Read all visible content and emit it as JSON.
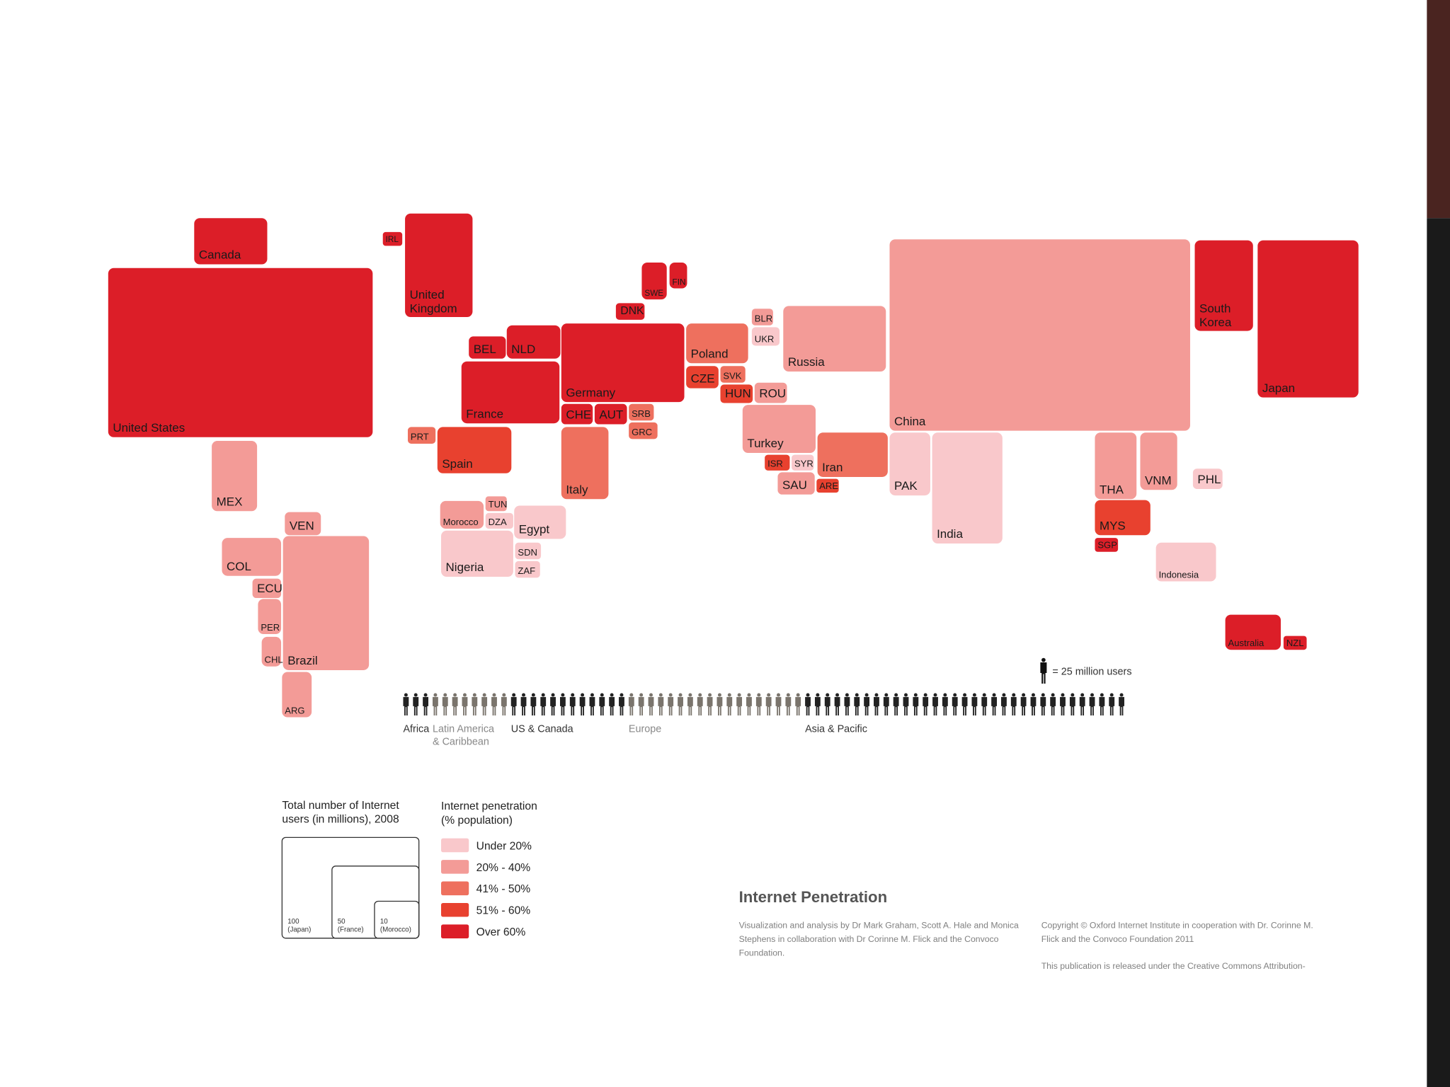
{
  "map": {
    "title": "Internet Penetration",
    "bands": [
      {
        "label": "Under 20%",
        "color": "#f9c8cb"
      },
      {
        "label": "20% - 40%",
        "color": "#f39b97"
      },
      {
        "label": "41% - 50%",
        "color": "#ee705e"
      },
      {
        "label": "51% - 60%",
        "color": "#e8412f"
      },
      {
        "label": "Over 60%",
        "color": "#dc1e28"
      }
    ],
    "countries": [
      {
        "label": "Canada",
        "band": 4
      },
      {
        "label": "United States",
        "band": 4
      },
      {
        "label": "IRL",
        "band": 4
      },
      {
        "label": "United Kingdom",
        "band": 4
      },
      {
        "label": "SWE",
        "band": 4
      },
      {
        "label": "FIN",
        "band": 4
      },
      {
        "label": "DNK",
        "band": 4
      },
      {
        "label": "BEL",
        "band": 4
      },
      {
        "label": "NLD",
        "band": 4
      },
      {
        "label": "Germany",
        "band": 4
      },
      {
        "label": "France",
        "band": 4
      },
      {
        "label": "CHE",
        "band": 4
      },
      {
        "label": "AUT",
        "band": 4
      },
      {
        "label": "SRB",
        "band": 2
      },
      {
        "label": "GRC",
        "band": 2
      },
      {
        "label": "PRT",
        "band": 2
      },
      {
        "label": "Spain",
        "band": 3
      },
      {
        "label": "Italy",
        "band": 2
      },
      {
        "label": "Poland",
        "band": 2
      },
      {
        "label": "CZE",
        "band": 3
      },
      {
        "label": "SVK",
        "band": 2
      },
      {
        "label": "HUN",
        "band": 3
      },
      {
        "label": "ROU",
        "band": 1
      },
      {
        "label": "BLR",
        "band": 1
      },
      {
        "label": "UKR",
        "band": 0
      },
      {
        "label": "Russia",
        "band": 1
      },
      {
        "label": "Turkey",
        "band": 1
      },
      {
        "label": "ISR",
        "band": 3
      },
      {
        "label": "SYR",
        "band": 0
      },
      {
        "label": "SAU",
        "band": 1
      },
      {
        "label": "ARE",
        "band": 3
      },
      {
        "label": "Iran",
        "band": 2
      },
      {
        "label": "China",
        "band": 1
      },
      {
        "label": "PAK",
        "band": 0
      },
      {
        "label": "India",
        "band": 0
      },
      {
        "label": "South Korea",
        "band": 4
      },
      {
        "label": "Japan",
        "band": 4
      },
      {
        "label": "THA",
        "band": 1
      },
      {
        "label": "VNM",
        "band": 1
      },
      {
        "label": "PHL",
        "band": 0
      },
      {
        "label": "MYS",
        "band": 3
      },
      {
        "label": "SGP",
        "band": 4
      },
      {
        "label": "Indonesia",
        "band": 0
      },
      {
        "label": "Australia",
        "band": 4
      },
      {
        "label": "NZL",
        "band": 4
      },
      {
        "label": "MEX",
        "band": 1
      },
      {
        "label": "VEN",
        "band": 1
      },
      {
        "label": "COL",
        "band": 1
      },
      {
        "label": "Brazil",
        "band": 1
      },
      {
        "label": "ECU",
        "band": 1
      },
      {
        "label": "PER",
        "band": 1
      },
      {
        "label": "CHL",
        "band": 1
      },
      {
        "label": "ARG",
        "band": 1
      },
      {
        "label": "Morocco",
        "band": 1
      },
      {
        "label": "TUN",
        "band": 1
      },
      {
        "label": "DZA",
        "band": 0
      },
      {
        "label": "Egypt",
        "band": 0
      },
      {
        "label": "Nigeria",
        "band": 0
      },
      {
        "label": "SDN",
        "band": 0
      },
      {
        "label": "ZAF",
        "band": 0
      }
    ],
    "people": {
      "key": "= 25 million users",
      "groups": [
        {
          "lines": [
            "Africa"
          ],
          "figures": 3,
          "color": "#222222"
        },
        {
          "lines": [
            "Latin America",
            "& Caribbean"
          ],
          "figures": 8,
          "color": "#7a746c"
        },
        {
          "lines": [
            "US & Canada"
          ],
          "figures": 12,
          "color": "#222222"
        },
        {
          "lines": [
            "Europe"
          ],
          "figures": 18,
          "color": "#7a746c"
        },
        {
          "lines": [
            "Asia & Pacific"
          ],
          "figures": 33,
          "color": "#222222"
        }
      ]
    },
    "size_legend": {
      "lines": [
        "Total number of Internet",
        "users (in millions), 2008"
      ],
      "boxes": [
        {
          "label": "100",
          "note": "(Japan)"
        },
        {
          "label": "50",
          "note": "(France)"
        },
        {
          "label": "10",
          "note": "(Morocco)"
        }
      ]
    },
    "band_legend_lines": [
      "Internet penetration",
      "(% population)"
    ],
    "credits": "Visualization and analysis by Dr Mark Graham, Scott A. Hale and Monica Stephens in collaboration with Dr Corinne M. Flick and the Convoco Foundation.",
    "copyright": "Copyright © Oxford Internet Institute in cooperation with Dr. Corinne M. Flick and the Convoco Foundation 2011",
    "license": "This publication is released under the Creative Commons Attribution-"
  }
}
